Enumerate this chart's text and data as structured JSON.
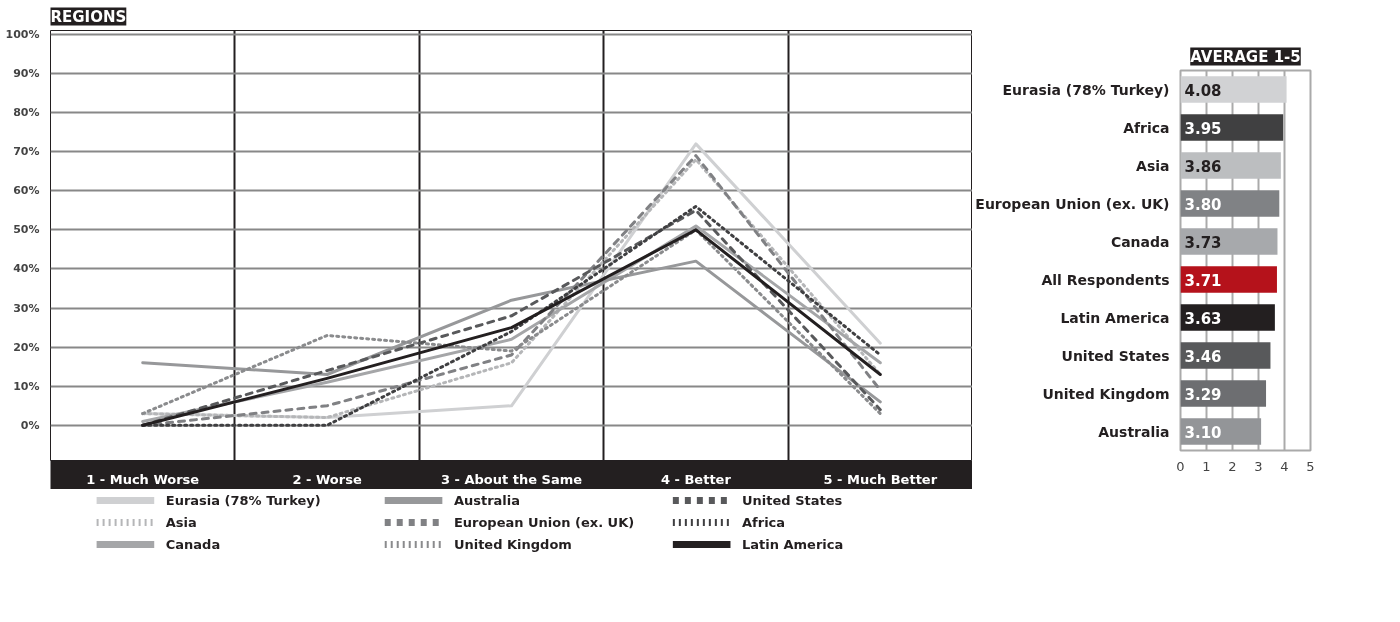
{
  "chart_data": [
    {
      "type": "line",
      "title": "REGIONS",
      "categories": [
        "1 - Much Worse",
        "2 - Worse",
        "3 - About the Same",
        "4 - Better",
        "5 - Much Better"
      ],
      "ylim": [
        -9,
        101
      ],
      "yticks": [
        {
          "value": 0,
          "label": "0%"
        },
        {
          "value": 10,
          "label": "10%"
        },
        {
          "value": 20,
          "label": "20%"
        },
        {
          "value": 30,
          "label": "30%"
        },
        {
          "value": 40,
          "label": "40%"
        },
        {
          "value": 50,
          "label": "50%"
        },
        {
          "value": 60,
          "label": "60%"
        },
        {
          "value": 70,
          "label": "70%"
        },
        {
          "value": 80,
          "label": "80%"
        },
        {
          "value": 90,
          "label": "90%"
        },
        {
          "value": 100,
          "label": "100%"
        }
      ],
      "grid": true,
      "legend": "bottom",
      "marker": "none",
      "series": [
        {
          "name": "Eurasia (78% Turkey)",
          "color": "#cfd0d2",
          "line_style": "solid",
          "values": [
            3,
            2,
            5,
            72,
            21
          ]
        },
        {
          "name": "Asia",
          "color": "#b5b6b8",
          "line_style": "dotted",
          "values": [
            3,
            2,
            16,
            68,
            13
          ]
        },
        {
          "name": "Canada",
          "color": "#a5a6a8",
          "line_style": "solid",
          "values": [
            1,
            11,
            22,
            51,
            16
          ]
        },
        {
          "name": "Australia",
          "color": "#97989a",
          "line_style": "solid",
          "values": [
            16,
            13,
            32,
            42,
            6
          ]
        },
        {
          "name": "European Union (ex. UK)",
          "color": "#808184",
          "line_style": "dashed",
          "values": [
            0,
            5,
            18,
            69,
            9
          ]
        },
        {
          "name": "United Kingdom",
          "color": "#8a8b8d",
          "line_style": "dotted",
          "values": [
            3,
            23,
            19,
            50,
            3
          ]
        },
        {
          "name": "United States",
          "color": "#58595b",
          "line_style": "dashed",
          "values": [
            0,
            14,
            28,
            55,
            4
          ]
        },
        {
          "name": "Africa",
          "color": "#3f3f41",
          "line_style": "dotted",
          "values": [
            0,
            0,
            24,
            56,
            18
          ]
        },
        {
          "name": "Latin America",
          "color": "#231f20",
          "line_style": "solid",
          "values": [
            0,
            12,
            25,
            50,
            13
          ]
        }
      ]
    },
    {
      "type": "bar",
      "orientation": "horizontal",
      "title": "AVERAGE 1-5",
      "categories": [
        "Eurasia (78% Turkey)",
        "Africa",
        "Asia",
        "European Union (ex. UK)",
        "Canada",
        "All Respondents",
        "Latin America",
        "United States",
        "United Kingdom",
        "Australia"
      ],
      "values": [
        4.08,
        3.95,
        3.86,
        3.8,
        3.73,
        3.71,
        3.63,
        3.46,
        3.29,
        3.1
      ],
      "colors": [
        "#d1d2d4",
        "#404041",
        "#bcbec0",
        "#808285",
        "#a7a9ac",
        "#b5121b",
        "#231f20",
        "#58595b",
        "#6d6e71",
        "#939598"
      ],
      "value_labels": [
        "4.08",
        "3.95",
        "3.86",
        "3.80",
        "3.73",
        "3.71",
        "3.63",
        "3.46",
        "3.29",
        "3.10"
      ],
      "xlim": [
        0,
        5
      ],
      "xticks": [
        0,
        1,
        2,
        3,
        4,
        5
      ],
      "grid": "x"
    }
  ]
}
